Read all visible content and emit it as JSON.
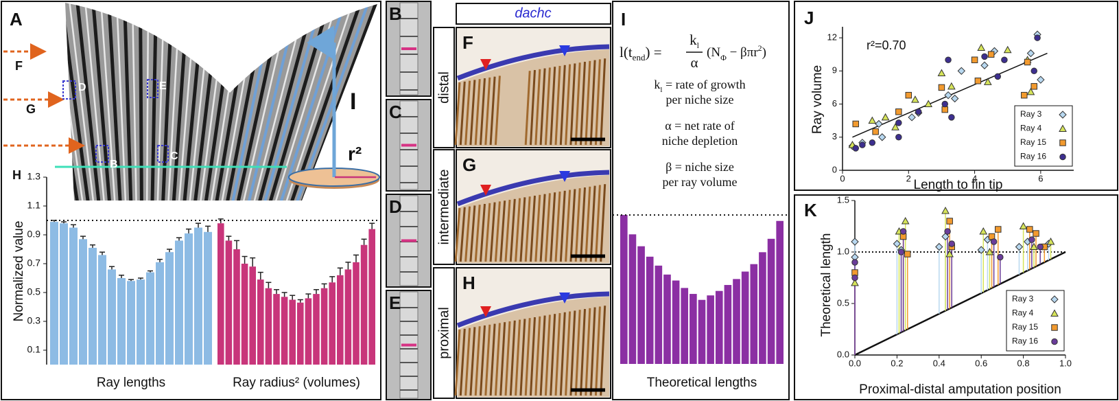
{
  "panels": {
    "A": {
      "arrows": [
        "F",
        "G",
        "H"
      ],
      "boxes": [
        "B",
        "C",
        "D",
        "E"
      ],
      "axis_label": "I",
      "radius_label": "r²"
    },
    "strips": [
      "B",
      "C",
      "D",
      "E"
    ],
    "gene": "dachc",
    "rows": [
      {
        "label": "F",
        "level": "distal"
      },
      {
        "label": "G",
        "level": "intermediate"
      },
      {
        "label": "H",
        "level": "proximal"
      }
    ],
    "I": {
      "equation": {
        "lhs": "l(t",
        "lhs_sub": "end",
        "lhs_end": ") =",
        "num": "k",
        "num_sub": "l",
        "den": "α",
        "rhs": "(N",
        "rhs_sub": "Φ",
        "rhs_mid": " − βπr",
        "rhs_sup": "2",
        "rhs_end": ")"
      },
      "definitions": [
        {
          "symbol": "k",
          "symbol_sub": "l",
          "lines": [
            "= rate of growth",
            "per niche size"
          ]
        },
        {
          "symbol": "α",
          "lines": [
            "= net rate of",
            "niche depletion"
          ]
        },
        {
          "symbol": "β",
          "lines": [
            "= niche size",
            "per ray volume"
          ]
        }
      ]
    }
  },
  "chart_data": [
    {
      "type": "bar",
      "panel_label": "A",
      "y_label": "Normalized value",
      "ylim": [
        0,
        1.3
      ],
      "yticks": [
        0.1,
        0.3,
        0.5,
        0.7,
        0.9,
        1.1,
        1.3
      ],
      "reference_line": 1,
      "groups": [
        {
          "name": "Ray lengths",
          "color": "#8dbbe4",
          "values": [
            0.99,
            0.98,
            0.95,
            0.87,
            0.81,
            0.76,
            0.66,
            0.6,
            0.58,
            0.59,
            0.64,
            0.71,
            0.78,
            0.86,
            0.91,
            0.95,
            0.92
          ],
          "errors": [
            0.01,
            0.01,
            0.02,
            0.02,
            0.02,
            0.02,
            0.02,
            0.02,
            0.01,
            0.01,
            0.01,
            0.02,
            0.02,
            0.02,
            0.03,
            0.03,
            0.04
          ]
        },
        {
          "name": "Ray radius² (volumes)",
          "color": "#c8357a",
          "values": [
            0.98,
            0.86,
            0.8,
            0.7,
            0.68,
            0.59,
            0.53,
            0.49,
            0.47,
            0.45,
            0.43,
            0.46,
            0.49,
            0.53,
            0.57,
            0.62,
            0.66,
            0.71,
            0.83,
            0.94
          ],
          "errors": [
            0.03,
            0.03,
            0.06,
            0.05,
            0.06,
            0.05,
            0.04,
            0.03,
            0.03,
            0.03,
            0.02,
            0.03,
            0.03,
            0.03,
            0.04,
            0.05,
            0.05,
            0.05,
            0.04,
            0.04
          ]
        }
      ]
    },
    {
      "type": "bar",
      "panel_label": "I",
      "ylim": [
        0,
        1.3
      ],
      "reference_line": 1,
      "groups": [
        {
          "name": "Theoretical lengths",
          "color": "#8b2fa3",
          "values": [
            1.0,
            0.87,
            0.79,
            0.72,
            0.66,
            0.6,
            0.56,
            0.51,
            0.47,
            0.43,
            0.46,
            0.49,
            0.53,
            0.57,
            0.62,
            0.67,
            0.75,
            0.84,
            0.96
          ]
        }
      ]
    },
    {
      "type": "scatter",
      "panel_label": "J",
      "x_label": "Length to fin tip",
      "y_label": "Ray volume",
      "xlim": [
        0,
        7
      ],
      "ylim": [
        0,
        13
      ],
      "xticks": [
        0,
        2,
        4,
        6
      ],
      "yticks": [
        0,
        3,
        6,
        9,
        12
      ],
      "annotation": "r²=0.70",
      "fit": {
        "x": [
          0.3,
          6.2
        ],
        "y": [
          3.0,
          10.6
        ]
      },
      "legend": "lower right",
      "series": [
        {
          "name": "Ray 3",
          "color": "#b8d8f0",
          "marker": "diamond",
          "x": [
            0.3,
            0.6,
            1.2,
            1.1,
            2.1,
            2.3,
            3.2,
            3.4,
            3.6,
            4.3,
            4.6,
            5.9,
            6.0,
            5.7
          ],
          "y": [
            2.2,
            2.5,
            3.0,
            4.2,
            4.8,
            5.2,
            6.8,
            6.5,
            9.0,
            9.5,
            10.8,
            12.3,
            8.2,
            10.6
          ]
        },
        {
          "name": "Ray 4",
          "color": "#d6e45a",
          "marker": "triangle",
          "x": [
            0.3,
            0.9,
            1.3,
            1.6,
            2.2,
            2.6,
            3.0,
            3.3,
            4.2,
            4.4,
            5.0,
            5.7,
            5.6
          ],
          "y": [
            2.3,
            4.5,
            4.8,
            3.9,
            6.4,
            6.0,
            8.8,
            7.6,
            11.1,
            8.0,
            10.9,
            7.1,
            10.0
          ]
        },
        {
          "name": "Ray 15",
          "color": "#f29a2e",
          "marker": "square",
          "x": [
            0.4,
            1.0,
            1.7,
            2.0,
            3.0,
            3.1,
            4.0,
            4.1,
            4.5,
            5.5,
            5.6,
            5.8
          ],
          "y": [
            4.2,
            3.5,
            5.3,
            6.8,
            7.5,
            5.5,
            10.0,
            8.1,
            10.5,
            6.8,
            9.8,
            7.6
          ]
        },
        {
          "name": "Ray 16",
          "color": "#3d2f8f",
          "marker": "circle",
          "x": [
            0.4,
            0.6,
            0.9,
            1.7,
            1.7,
            2.3,
            3.2,
            3.3,
            3.1,
            4.3,
            4.7,
            4.9,
            5.8,
            5.9
          ],
          "y": [
            2.0,
            2.3,
            2.5,
            3.0,
            4.3,
            5.3,
            10.0,
            4.8,
            6.0,
            10.3,
            8.5,
            10.0,
            9.0,
            12.0
          ]
        }
      ]
    },
    {
      "type": "scatter",
      "panel_label": "K",
      "x_label": "Proximal-distal amputation position",
      "y_label": "Theoretical length",
      "xlim": [
        0,
        1
      ],
      "ylim": [
        0,
        1.5
      ],
      "xticks": [
        {
          "value": 0,
          "label": "0.0"
        },
        0.2,
        0.4,
        0.6,
        0.8,
        {
          "value": 1,
          "label": "1.0"
        }
      ],
      "yticks": [
        {
          "value": 0,
          "label": "0.0"
        },
        0.5,
        {
          "value": 1,
          "label": "1.0"
        },
        1.5
      ],
      "reference_line": 1,
      "diagonal": true,
      "stems": true,
      "legend": "lower right",
      "series": [
        {
          "name": "Ray 3",
          "color": "#b8d8f0",
          "marker": "diamond",
          "x": [
            0.0,
            0.0,
            0.2,
            0.22,
            0.4,
            0.43,
            0.6,
            0.63,
            0.78,
            0.82,
            0.92
          ],
          "y": [
            1.1,
            0.95,
            1.08,
            1.02,
            1.05,
            1.15,
            1.02,
            1.12,
            1.05,
            1.1,
            1.08
          ]
        },
        {
          "name": "Ray 4",
          "color": "#d6e45a",
          "marker": "triangle",
          "x": [
            0.0,
            0.21,
            0.24,
            0.43,
            0.45,
            0.61,
            0.64,
            0.8,
            0.85,
            0.93
          ],
          "y": [
            0.7,
            1.2,
            1.3,
            1.4,
            0.98,
            1.2,
            1.0,
            1.25,
            1.05,
            1.1
          ]
        },
        {
          "name": "Ray 15",
          "color": "#f29a2e",
          "marker": "square",
          "x": [
            0.0,
            0.23,
            0.25,
            0.45,
            0.46,
            0.65,
            0.68,
            0.83,
            0.86,
            0.9
          ],
          "y": [
            0.8,
            1.15,
            0.98,
            1.3,
            1.05,
            1.15,
            1.22,
            1.22,
            1.18,
            1.05
          ]
        },
        {
          "name": "Ray 16",
          "color": "#6a3d9a",
          "marker": "circle",
          "x": [
            0.0,
            0.0,
            0.22,
            0.23,
            0.44,
            0.46,
            0.66,
            0.69,
            0.84,
            0.88
          ],
          "y": [
            0.9,
            0.75,
            1.0,
            1.2,
            1.2,
            1.08,
            1.1,
            0.95,
            1.12,
            1.05
          ]
        }
      ]
    }
  ]
}
